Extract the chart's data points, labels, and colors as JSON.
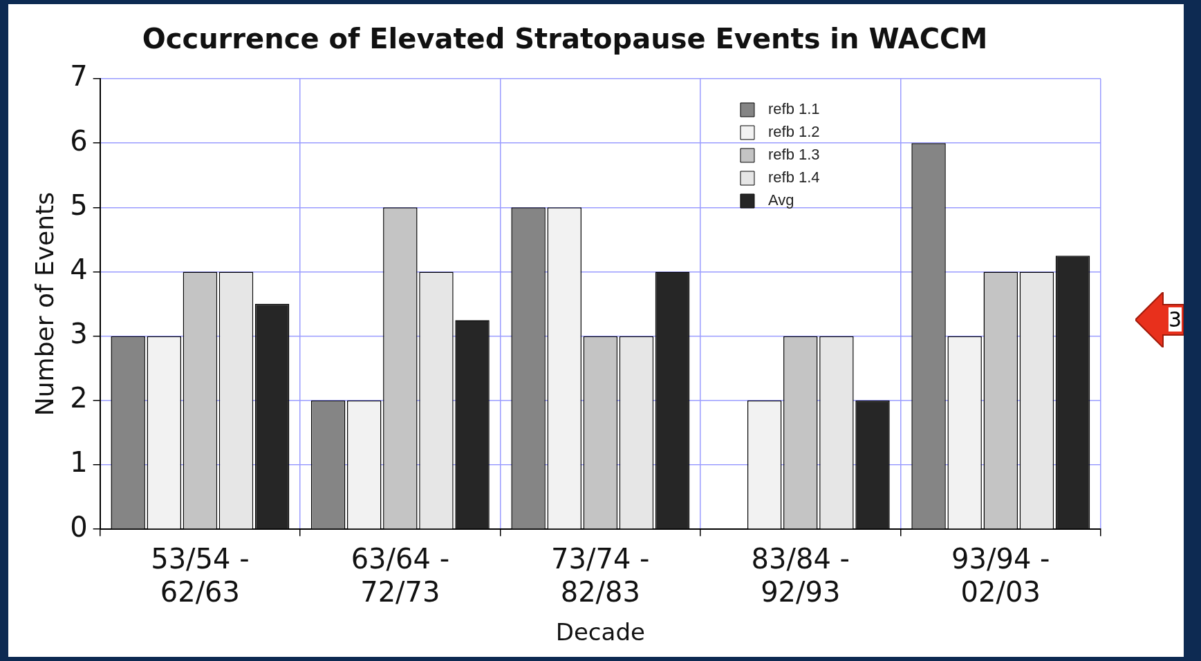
{
  "chart_data": {
    "type": "bar",
    "title": "Occurrence of Elevated Stratopause Events in WACCM",
    "xlabel": "Decade",
    "ylabel": "Number of Events",
    "categories": [
      "53/54 -\n62/63",
      "63/64 -\n72/73",
      "73/74 -\n82/83",
      "83/84 -\n92/93",
      "93/94 -\n02/03"
    ],
    "series": [
      {
        "name": "refb 1.1",
        "color": "#858585",
        "values": [
          3,
          2,
          5,
          0,
          6
        ]
      },
      {
        "name": "refb 1.2",
        "color": "#f2f2f2",
        "values": [
          3,
          2,
          5,
          2,
          3
        ]
      },
      {
        "name": "refb 1.3",
        "color": "#c4c4c4",
        "values": [
          4,
          5,
          3,
          3,
          4
        ]
      },
      {
        "name": "refb 1.4",
        "color": "#e6e6e6",
        "values": [
          4,
          4,
          3,
          3,
          4
        ]
      },
      {
        "name": "Avg",
        "color": "#262626",
        "values": [
          3.5,
          3.25,
          4,
          2,
          4.25
        ]
      }
    ],
    "ylim": [
      0,
      7
    ],
    "yticks": [
      0,
      1,
      2,
      3,
      4,
      5,
      6,
      7
    ],
    "grid": true,
    "legend": "top right",
    "annotations": [
      "3"
    ]
  }
}
